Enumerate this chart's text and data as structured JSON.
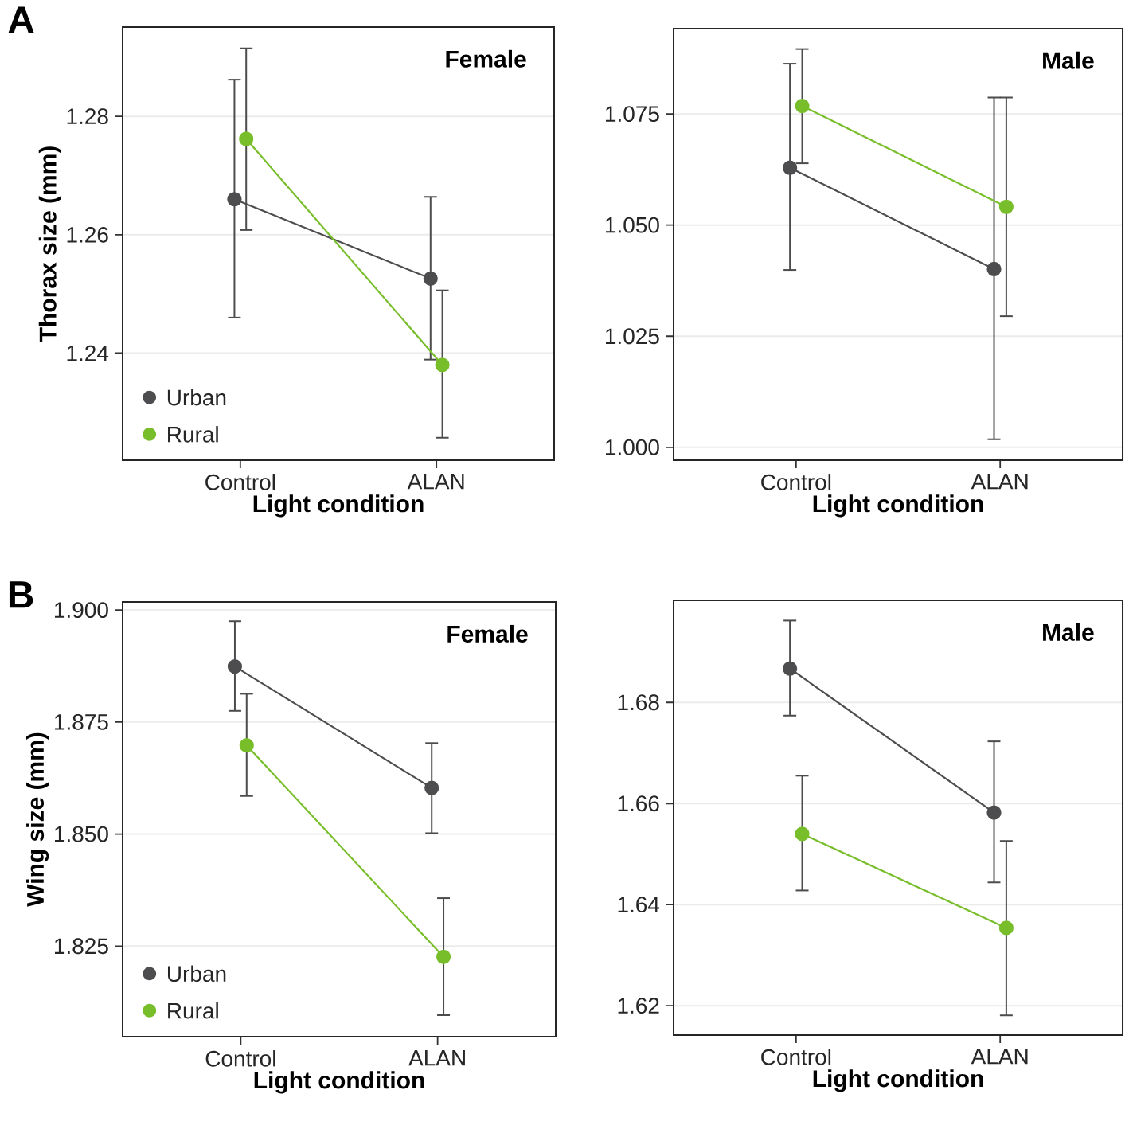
{
  "chart_data": [
    {
      "type": "line",
      "title": "Female",
      "ylabel": "Thorax size (mm)",
      "xlabel": "Light condition",
      "annotations": [
        "A"
      ],
      "categories": [
        "Control",
        "ALAN"
      ],
      "ylim": [
        1.2219,
        1.2951
      ],
      "yticks": [
        1.24,
        1.26,
        1.28
      ],
      "grid": "y",
      "legend": "bottom left",
      "marker": "circle",
      "series": [
        {
          "name": "Urban",
          "color": "#4d4d4f",
          "values": [
            1.266,
            1.2526
          ],
          "errors": [
            [
              1.246,
              1.2862
            ],
            [
              1.2389,
              1.2664
            ]
          ]
        },
        {
          "name": "Rural",
          "color": "#78be2b",
          "values": [
            1.2762,
            1.238
          ],
          "errors": [
            [
              1.2608,
              1.2915
            ],
            [
              1.2257,
              1.2506
            ]
          ]
        }
      ]
    },
    {
      "type": "line",
      "title": "Male",
      "xlabel": "Light condition",
      "categories": [
        "Control",
        "ALAN"
      ],
      "ylim": [
        0.9971,
        1.0942
      ],
      "yticks": [
        {
          "value": 1.0,
          "label": "1.000"
        },
        1.025,
        {
          "value": 1.05,
          "label": "1.050"
        },
        1.075
      ],
      "grid": "y",
      "marker": "circle",
      "series": [
        {
          "color": "#4d4d4f",
          "values": [
            1.0629,
            1.0401
          ],
          "errors": [
            [
              1.0399,
              1.0863
            ],
            [
              1.0018,
              1.0787
            ]
          ]
        },
        {
          "color": "#78be2b",
          "values": [
            1.0768,
            1.0541
          ],
          "errors": [
            [
              1.0639,
              1.0896
            ],
            [
              1.0295,
              1.0787
            ]
          ]
        }
      ]
    },
    {
      "type": "line",
      "title": "Female",
      "ylabel": "Wing size (mm)",
      "xlabel": "Light condition",
      "annotations": [
        "B"
      ],
      "categories": [
        "Control",
        "ALAN"
      ],
      "ylim": [
        1.8048,
        1.9018
      ],
      "yticks": [
        1.825,
        {
          "value": 1.85,
          "label": "1.850"
        },
        1.875,
        {
          "value": 1.9,
          "label": "1.900"
        }
      ],
      "grid": "y",
      "legend": "bottom left",
      "marker": "circle",
      "series": [
        {
          "name": "Urban",
          "color": "#4d4d4f",
          "values": [
            1.8874,
            1.8603
          ],
          "errors": [
            [
              1.8775,
              1.8975
            ],
            [
              1.8502,
              1.8703
            ]
          ]
        },
        {
          "name": "Rural",
          "color": "#78be2b",
          "values": [
            1.8698,
            1.8226
          ],
          "errors": [
            [
              1.8585,
              1.8813
            ],
            [
              1.8096,
              1.8357
            ]
          ]
        }
      ]
    },
    {
      "type": "line",
      "title": "Male",
      "xlabel": "Light condition",
      "categories": [
        "Control",
        "ALAN"
      ],
      "ylim": [
        1.6142,
        1.7002
      ],
      "yticks": [
        1.62,
        1.64,
        1.66,
        1.68
      ],
      "grid": "y",
      "marker": "circle",
      "series": [
        {
          "color": "#4d4d4f",
          "values": [
            1.6867,
            1.6582
          ],
          "errors": [
            [
              1.6774,
              1.6962
            ],
            [
              1.6444,
              1.6723
            ]
          ]
        },
        {
          "color": "#78be2b",
          "values": [
            1.654,
            1.6354
          ],
          "errors": [
            [
              1.6428,
              1.6655
            ],
            [
              1.6181,
              1.6526
            ]
          ]
        }
      ]
    }
  ]
}
